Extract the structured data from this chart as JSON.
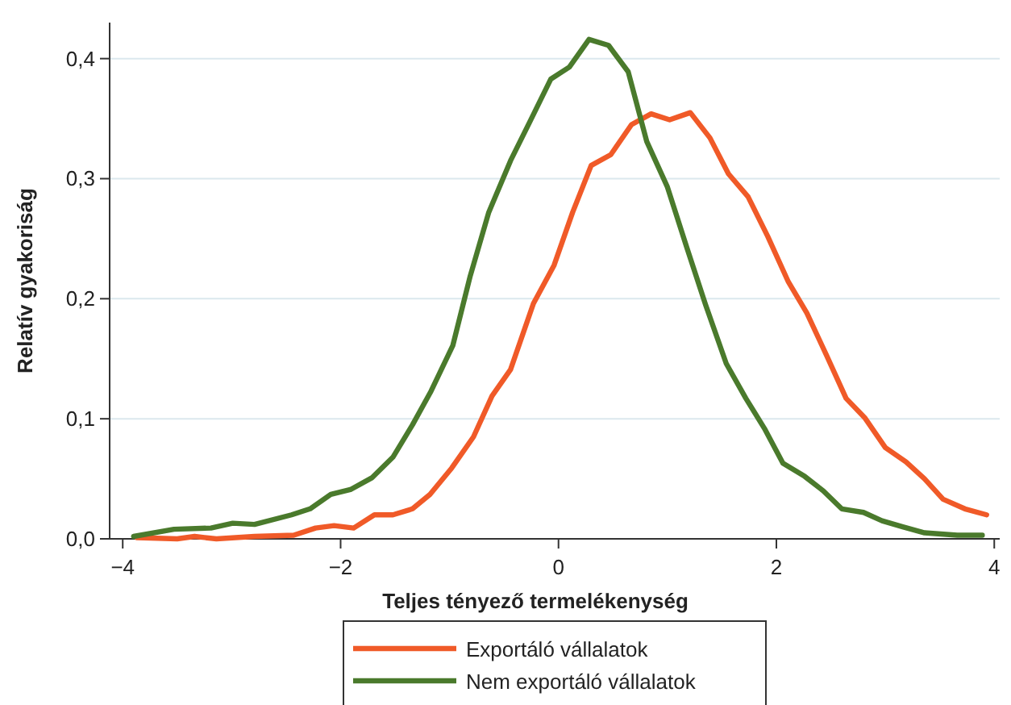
{
  "chart_data": {
    "type": "line",
    "xlabel": "Teljes tényező termelékenység",
    "ylabel": "Relatív gyakoriság",
    "xlim": [
      -4.12,
      4.05
    ],
    "ylim": [
      0,
      0.43
    ],
    "xticks": [
      {
        "value": -4,
        "label": "−4"
      },
      {
        "value": -2,
        "label": "−2"
      },
      0,
      2,
      4
    ],
    "yticks": [
      {
        "value": 0,
        "label": "0,0"
      },
      {
        "value": 0.1,
        "label": "0,1"
      },
      {
        "value": 0.2,
        "label": "0,2"
      },
      {
        "value": 0.3,
        "label": "0,3"
      },
      {
        "value": 0.4,
        "label": "0,4"
      }
    ],
    "grid": "y",
    "legend": "bottom",
    "marker": "none",
    "line_style": "solid",
    "series": [
      {
        "name": "Exportáló vállalatok",
        "color": "#f05a28",
        "x": [
          -3.87,
          -3.5,
          -3.34,
          -3.14,
          -2.79,
          -2.43,
          -2.23,
          -2.06,
          -1.88,
          -1.69,
          -1.52,
          -1.34,
          -1.18,
          -0.98,
          -0.78,
          -0.61,
          -0.44,
          -0.23,
          -0.04,
          0.13,
          0.3,
          0.48,
          0.67,
          0.85,
          1.02,
          1.21,
          1.39,
          1.56,
          1.74,
          1.92,
          2.11,
          2.28,
          2.46,
          2.64,
          2.81,
          3.0,
          3.19,
          3.36,
          3.53,
          3.73,
          3.93
        ],
        "values": [
          0.001,
          0.0,
          0.002,
          0.0,
          0.002,
          0.003,
          0.009,
          0.011,
          0.009,
          0.02,
          0.02,
          0.025,
          0.037,
          0.059,
          0.085,
          0.119,
          0.141,
          0.196,
          0.228,
          0.272,
          0.311,
          0.32,
          0.345,
          0.354,
          0.349,
          0.355,
          0.334,
          0.304,
          0.285,
          0.252,
          0.214,
          0.188,
          0.153,
          0.117,
          0.101,
          0.076,
          0.064,
          0.05,
          0.033,
          0.025,
          0.02
        ]
      },
      {
        "name": "Nem exportáló vállalatok",
        "color": "#4a7a2c",
        "x": [
          -3.9,
          -3.53,
          -3.19,
          -2.99,
          -2.79,
          -2.45,
          -2.28,
          -2.09,
          -1.91,
          -1.71,
          -1.52,
          -1.34,
          -1.17,
          -0.97,
          -0.81,
          -0.64,
          -0.44,
          -0.26,
          -0.07,
          0.1,
          0.28,
          0.46,
          0.64,
          0.81,
          1.0,
          1.18,
          1.35,
          1.54,
          1.72,
          1.89,
          2.06,
          2.26,
          2.43,
          2.6,
          2.8,
          2.97,
          3.16,
          3.36,
          3.66,
          3.89
        ],
        "values": [
          0.002,
          0.008,
          0.009,
          0.013,
          0.012,
          0.02,
          0.025,
          0.037,
          0.041,
          0.051,
          0.068,
          0.095,
          0.123,
          0.161,
          0.219,
          0.272,
          0.315,
          0.348,
          0.383,
          0.393,
          0.416,
          0.411,
          0.389,
          0.331,
          0.293,
          0.242,
          0.195,
          0.146,
          0.117,
          0.092,
          0.063,
          0.052,
          0.04,
          0.025,
          0.022,
          0.015,
          0.01,
          0.005,
          0.003,
          0.003
        ]
      }
    ]
  }
}
